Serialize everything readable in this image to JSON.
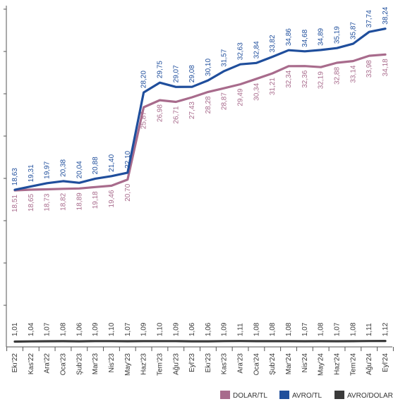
{
  "chart_data": {
    "type": "line",
    "categories": [
      "Ekı'22",
      "Kas'22",
      "Ara'22",
      "Oca'23",
      "Şub'23",
      "Mar'23",
      "Nis'23",
      "May'23",
      "Haz'23",
      "Tem'23",
      "Ağu'23",
      "Eyl'23",
      "Ekı'23",
      "Kas'23",
      "Ara'23",
      "Oca'24",
      "Şub'24",
      "Mar'24",
      "Nis'24",
      "May'24",
      "Haz'24",
      "Tem'24",
      "Ağu'24",
      "Eyl'24"
    ],
    "series": [
      {
        "name": "DOLAR/TL",
        "color": "#a86b8c",
        "labels": [
          "18,51",
          "18,65",
          "18,73",
          "18,82",
          "18,89",
          "19,18",
          "19,46",
          "20,70",
          "25,87",
          "26,98",
          "26,71",
          "27,43",
          "28,28",
          "28,87",
          "29,49",
          "30,34",
          "31,21",
          "32,34",
          "32,36",
          "32,19",
          "32,88",
          "33,14",
          "33,98",
          "34,18"
        ],
        "values": [
          18.51,
          18.65,
          18.73,
          18.82,
          18.89,
          19.18,
          19.46,
          20.7,
          25.87,
          26.98,
          26.71,
          27.43,
          28.28,
          28.87,
          29.49,
          30.34,
          31.21,
          32.34,
          32.36,
          32.19,
          32.88,
          33.14,
          33.98,
          34.18
        ]
      },
      {
        "name": "AVRO/TL",
        "color": "#1f4e9c",
        "labels": [
          "18,63",
          "19,31",
          "19,97",
          "20,38",
          "20,04",
          "20,88",
          "21,40",
          "22,10",
          "28,20",
          "29,75",
          "29,07",
          "29,08",
          "30,10",
          "31,57",
          "32,63",
          "32,84",
          "33,82",
          "34,86",
          "34,68",
          "34,89",
          "35,19",
          "35,87",
          "37,74",
          "38,24"
        ],
        "values": [
          18.63,
          19.31,
          19.97,
          20.38,
          20.04,
          20.88,
          21.4,
          22.1,
          28.2,
          29.75,
          29.07,
          29.08,
          30.1,
          31.57,
          32.63,
          32.84,
          33.82,
          34.86,
          34.68,
          34.89,
          35.19,
          35.87,
          37.74,
          38.24
        ]
      },
      {
        "name": "AVRO/DOLAR",
        "color": "#3a3a3a",
        "labels": [
          "1,01",
          "1,04",
          "1,07",
          "1,08",
          "1,06",
          "1,09",
          "1,10",
          "1,07",
          "1,09",
          "1,10",
          "1,09",
          "1,06",
          "1,06",
          "1,09",
          "1,11",
          "1,08",
          "1,08",
          "1,08",
          "1,07",
          "1,08",
          "1,07",
          "1,08",
          "1,11",
          "1,12"
        ],
        "values": [
          1.01,
          1.04,
          1.07,
          1.08,
          1.06,
          1.09,
          1.1,
          1.07,
          1.09,
          1.1,
          1.09,
          1.06,
          1.06,
          1.09,
          1.11,
          1.08,
          1.08,
          1.08,
          1.07,
          1.08,
          1.07,
          1.08,
          1.11,
          1.12
        ]
      }
    ],
    "grid": false,
    "legend": "bottom-right"
  }
}
